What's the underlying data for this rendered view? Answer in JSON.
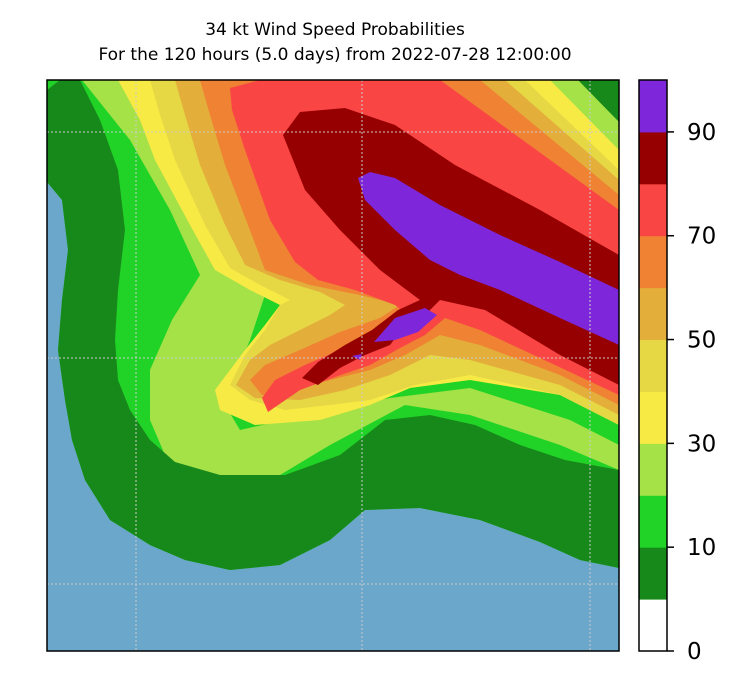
{
  "chart_data": {
    "type": "heatmap",
    "title": "34 kt Wind Speed Probabilities",
    "subtitle": "For the 120 hours (5.0 days) from 2022-07-28 12:00:00",
    "xlabel": "",
    "ylabel": "",
    "colorbar": {
      "levels": [
        0,
        5,
        10,
        20,
        30,
        40,
        50,
        60,
        70,
        80,
        90,
        100
      ],
      "colors": [
        "#ffffff",
        "#17891a",
        "#22d327",
        "#a4e247",
        "#f8ea45",
        "#e6d845",
        "#e3ae3a",
        "#ef8233",
        "#fa4545",
        "#960001",
        "#7e27da"
      ],
      "ticks": [
        0,
        10,
        30,
        50,
        70,
        90
      ],
      "tick_labels": [
        "0",
        "10",
        "30",
        "50",
        "70",
        "90"
      ]
    },
    "land_color": "#6ba6cb",
    "gridlines": true,
    "regions": [
      {
        "name": "region-0-5",
        "probability_band": "0-5",
        "color": "#6ba6cb"
      },
      {
        "name": "region-5-10",
        "probability_band": "5-10",
        "color": "#17891a"
      },
      {
        "name": "region-10-20",
        "probability_band": "10-20",
        "color": "#22d327"
      },
      {
        "name": "region-20-30",
        "probability_band": "20-30",
        "color": "#a4e247"
      },
      {
        "name": "region-30-40",
        "probability_band": "30-40",
        "color": "#f8ea45"
      },
      {
        "name": "region-40-50",
        "probability_band": "40-50",
        "color": "#e6d845"
      },
      {
        "name": "region-50-60",
        "probability_band": "50-60",
        "color": "#e3ae3a"
      },
      {
        "name": "region-60-70",
        "probability_band": "60-70",
        "color": "#ef8233"
      },
      {
        "name": "region-70-80",
        "probability_band": "70-80",
        "color": "#fa4545"
      },
      {
        "name": "region-80-90",
        "probability_band": "80-90",
        "color": "#960001"
      },
      {
        "name": "region-90-100",
        "probability_band": "90-100",
        "color": "#7e27da"
      }
    ]
  }
}
